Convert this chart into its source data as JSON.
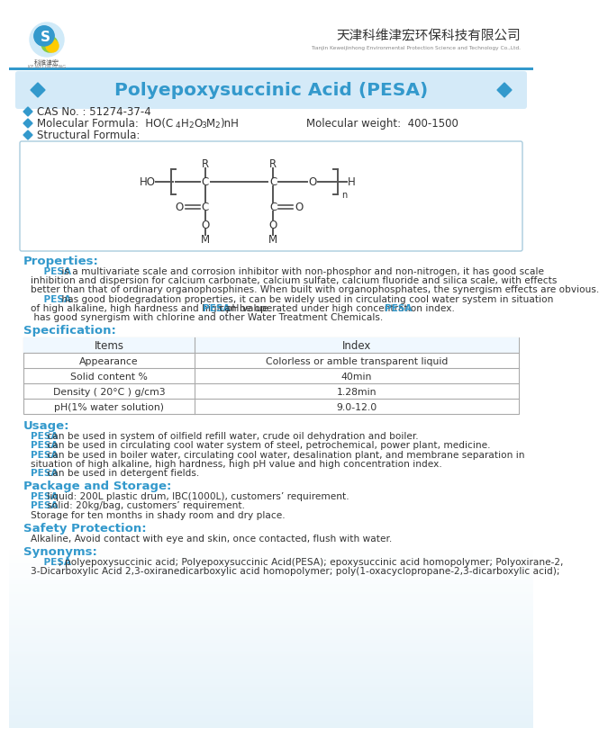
{
  "bg_color": "#ffffff",
  "title_bg": "#d6eaf8",
  "title_text": "Polyepoxysuccinic Acid (PESA)",
  "title_color": "#3399cc",
  "company_cn": "天津科维津宏环保科技有限公司",
  "company_en": "Tianjin Keweijinhong Environmental Protection Science and Technology Co.,Ltd.",
  "diamond_color": "#3399cc",
  "cas": "CAS No. : 51274-37-4",
  "mol_formula_label": "Molecular Formula:  HO(C",
  "mol_formula_sub": "4",
  "mol_formula_mid": "H",
  "mol_formula_sub2": "2",
  "mol_formula_rest": "O",
  "mol_formula_sub3": "3",
  "mol_formula_end": "M",
  "mol_formula_sub4": "2",
  "mol_formula_close": ")nH",
  "mol_weight": "Molecular weight:  400-1500",
  "struct_formula_label": "Structural Formula:",
  "properties_title": "Properties:",
  "properties_lines": [
    [
      "    ",
      false,
      "PESA",
      true,
      " is a multivariate scale and corrosion inhibitor with non-phosphor and non-nitrogen, it has good scale",
      false
    ],
    [
      "inhibition and dispersion for calcium carbonate, calcium sulfate, calcium fluoride and silica scale, with effects",
      false
    ],
    [
      "better than that of ordinary organophosphines. When built with organophosphates, the synergism effects are obvious.",
      false
    ],
    [
      "    ",
      false,
      "PESA",
      true,
      " has good biodegradation properties, it can be widely used in circulating cool water system in situation",
      false
    ],
    [
      "of high alkaline, high hardness and high pH value.",
      false,
      "PESA",
      true,
      " can be operated under high concentration index. ",
      false,
      "PESA",
      true
    ],
    [
      " has good synergism with chlorine and other Water Treatment Chemicals.",
      false
    ]
  ],
  "spec_title": "Specification:",
  "spec_items": [
    "Items",
    "Appearance",
    "Solid content %",
    "Density ( 20°C ) g/cm3",
    "pH(1% water solution)"
  ],
  "spec_index": [
    "Index",
    "Colorless or amble transparent liquid",
    "40min",
    "1.28min",
    "9.0-12.0"
  ],
  "usage_title": "Usage:",
  "usage_lines": [
    [
      "PESA",
      true,
      " can be used in system of oilfield refill water, crude oil dehydration and boiler.",
      false
    ],
    [
      "PESA",
      true,
      " can be used in circulating cool water system of steel, petrochemical, power plant, medicine.",
      false
    ],
    [
      "PESA",
      true,
      " can be used in boiler water, circulating cool water, desalination plant, and membrane separation in",
      false
    ],
    [
      "situation of high alkaline, high hardness, high pH value and high concentration index.",
      false
    ],
    [
      "PESA",
      true,
      " can be used in detergent fields.",
      false
    ]
  ],
  "package_title": "Package and Storage:",
  "package_lines": [
    [
      "PESA",
      true,
      " liquid: 200L plastic drum, IBC(1000L), customers’ requirement.",
      false
    ],
    [
      "PESA",
      true,
      " solid: 20kg/bag, customers’ requirement.",
      false
    ],
    [
      "Storage for ten months in shady room and dry place.",
      false
    ]
  ],
  "safety_title": "Safety Protection:",
  "safety_text": "Alkaline, Avoid contact with eye and skin, once contacted, flush with water.",
  "synonyms_title": "Synonyms:",
  "synonyms_lines": [
    [
      "    ",
      false,
      "PESA",
      true,
      "; polyepoxysuccinic acid; Polyepoxysuccinic Acid(PESA); epoxysuccinic acid homopolymer; Polyoxirane-2,",
      false
    ],
    [
      "3-Dicarboxylic Acid 2,3-oxiranedicarboxylic acid homopolymer; poly(1-oxacyclopropane-2,3-dicarboxylic acid);",
      false
    ]
  ],
  "section_color": "#3399cc",
  "text_color": "#333333",
  "pesa_color": "#3399cc",
  "grad_top": "#cce8f4",
  "grad_bot": "#a8d8ea"
}
